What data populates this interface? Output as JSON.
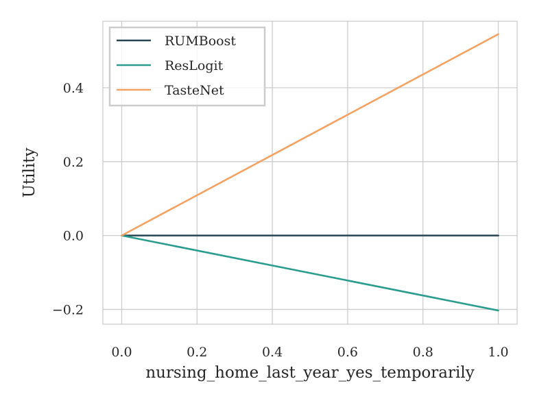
{
  "chart_data": {
    "type": "line",
    "title": "",
    "xlabel": "nursing_home_last_year_yes_temporarily",
    "ylabel": "Utility",
    "xlim": [
      -0.05,
      1.05
    ],
    "ylim": [
      -0.24,
      0.58
    ],
    "xticks": [
      0.0,
      0.2,
      0.4,
      0.6,
      0.8,
      1.0
    ],
    "xtick_labels": [
      "0.0",
      "0.2",
      "0.4",
      "0.6",
      "0.8",
      "1.0"
    ],
    "yticks": [
      -0.2,
      0.0,
      0.2,
      0.4
    ],
    "ytick_labels": [
      "−0.2",
      "0.0",
      "0.2",
      "0.4"
    ],
    "grid": true,
    "legend_position": "top-left",
    "series": [
      {
        "name": "RUMBoost",
        "color": "#264653",
        "x": [
          0.0,
          1.0
        ],
        "y": [
          0.0,
          0.0
        ]
      },
      {
        "name": "ResLogit",
        "color": "#2a9d8f",
        "x": [
          0.0,
          1.0
        ],
        "y": [
          0.0,
          -0.203
        ]
      },
      {
        "name": "TasteNet",
        "color": "#f4a261",
        "x": [
          0.0,
          1.0
        ],
        "y": [
          0.0,
          0.545
        ]
      }
    ]
  }
}
